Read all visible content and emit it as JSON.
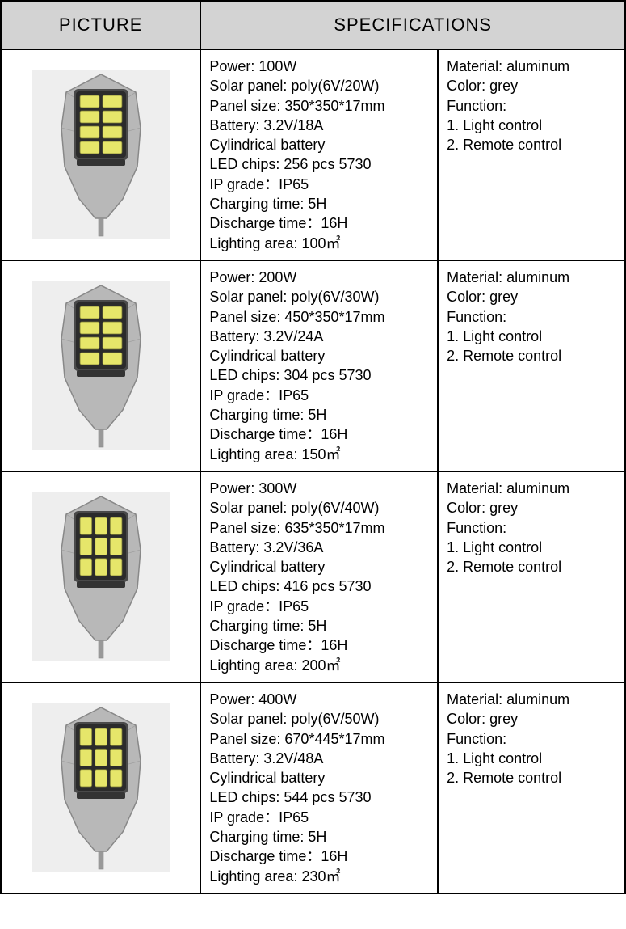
{
  "table": {
    "header_picture": "PICTURE",
    "header_specifications": "SPECIFICATIONS",
    "header_bg": "#d3d3d3",
    "border_color": "#000000",
    "font_size_header": 22,
    "font_size_cell": 18,
    "col_widths_pct": [
      32,
      38,
      30
    ]
  },
  "product_colors": {
    "body": "#b8b8b8",
    "body_stroke": "#888888",
    "panel": "#e6e66a",
    "panel_stroke": "#777733",
    "pin": "#999999",
    "bg": "#eeeeee"
  },
  "rows": [
    {
      "led_grid": {
        "cols": 2,
        "rows": 4
      },
      "spec1": [
        "Power: 100W",
        "Solar panel: poly(6V/20W)",
        "Panel size: 350*350*17mm",
        "Battery: 3.2V/18A",
        "Cylindrical battery",
        "LED chips: 256 pcs 5730",
        "IP grade：IP65",
        "Charging time: 5H",
        "Discharge time：16H",
        "Lighting area: 100㎡"
      ],
      "spec2": [
        "Material: aluminum",
        "Color: grey",
        "Function:",
        "1. Light control",
        "2. Remote control"
      ]
    },
    {
      "led_grid": {
        "cols": 2,
        "rows": 4
      },
      "spec1": [
        "Power: 200W",
        "Solar panel: poly(6V/30W)",
        "Panel size: 450*350*17mm",
        "Battery: 3.2V/24A",
        "Cylindrical battery",
        "LED chips: 304 pcs 5730",
        "IP grade：IP65",
        "Charging time: 5H",
        "Discharge time：16H",
        "Lighting area: 150㎡"
      ],
      "spec2": [
        "Material: aluminum",
        "Color: grey",
        "Function:",
        "1. Light control",
        "2. Remote control"
      ]
    },
    {
      "led_grid": {
        "cols": 3,
        "rows": 3
      },
      "spec1": [
        "Power: 300W",
        "Solar panel: poly(6V/40W)",
        "Panel size: 635*350*17mm",
        "Battery: 3.2V/36A",
        "Cylindrical battery",
        "LED chips: 416 pcs 5730",
        "IP grade：IP65",
        "Charging time: 5H",
        "Discharge time：16H",
        "Lighting area: 200㎡"
      ],
      "spec2": [
        "Material: aluminum",
        "Color: grey",
        "Function:",
        "1. Light control",
        "2. Remote control"
      ]
    },
    {
      "led_grid": {
        "cols": 3,
        "rows": 3
      },
      "spec1": [
        "Power: 400W",
        "Solar panel: poly(6V/50W)",
        "Panel size: 670*445*17mm",
        "Battery: 3.2V/48A",
        "Cylindrical battery",
        "LED chips: 544 pcs 5730",
        "IP grade：IP65",
        "Charging time: 5H",
        "Discharge time：16H",
        "Lighting area: 230㎡"
      ],
      "spec2": [
        "Material: aluminum",
        "Color: grey",
        "Function:",
        "1. Light control",
        "2. Remote control"
      ]
    }
  ]
}
